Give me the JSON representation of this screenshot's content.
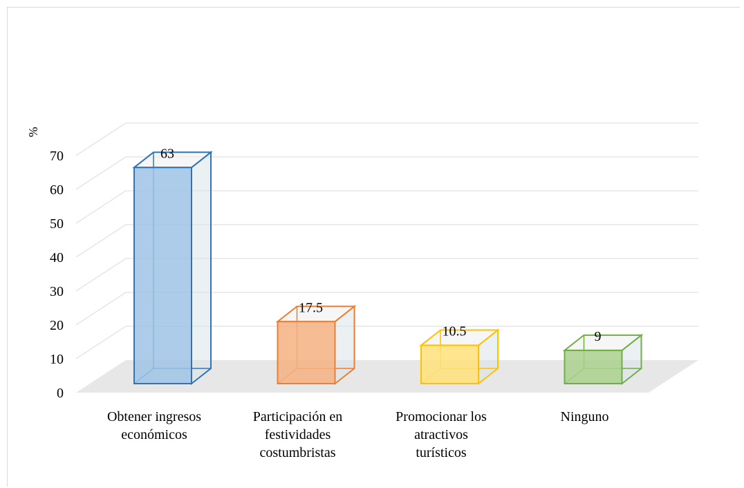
{
  "chart_data": {
    "type": "bar",
    "style": "3d",
    "ylabel": "%",
    "ylim": [
      0,
      70
    ],
    "yticks": [
      0,
      10,
      20,
      30,
      40,
      50,
      60,
      70
    ],
    "grid": true,
    "categories": [
      [
        "Obtener ingresos",
        "económicos"
      ],
      [
        "Participación en",
        "festividades",
        "costumbristas"
      ],
      [
        "Promocionar los",
        "atractivos",
        "turísticos"
      ],
      [
        "Ninguno"
      ]
    ],
    "values": [
      63,
      17.5,
      10.5,
      9
    ],
    "data_labels": [
      "63",
      "17.5",
      "10.5",
      "9"
    ],
    "colors": [
      {
        "fill": "#9dc3e6",
        "stroke": "#2e75b6"
      },
      {
        "fill": "#f4b183",
        "stroke": "#ed7d31"
      },
      {
        "fill": "#ffe27a",
        "stroke": "#ffc000"
      },
      {
        "fill": "#a9d18e",
        "stroke": "#70ad47"
      }
    ]
  }
}
